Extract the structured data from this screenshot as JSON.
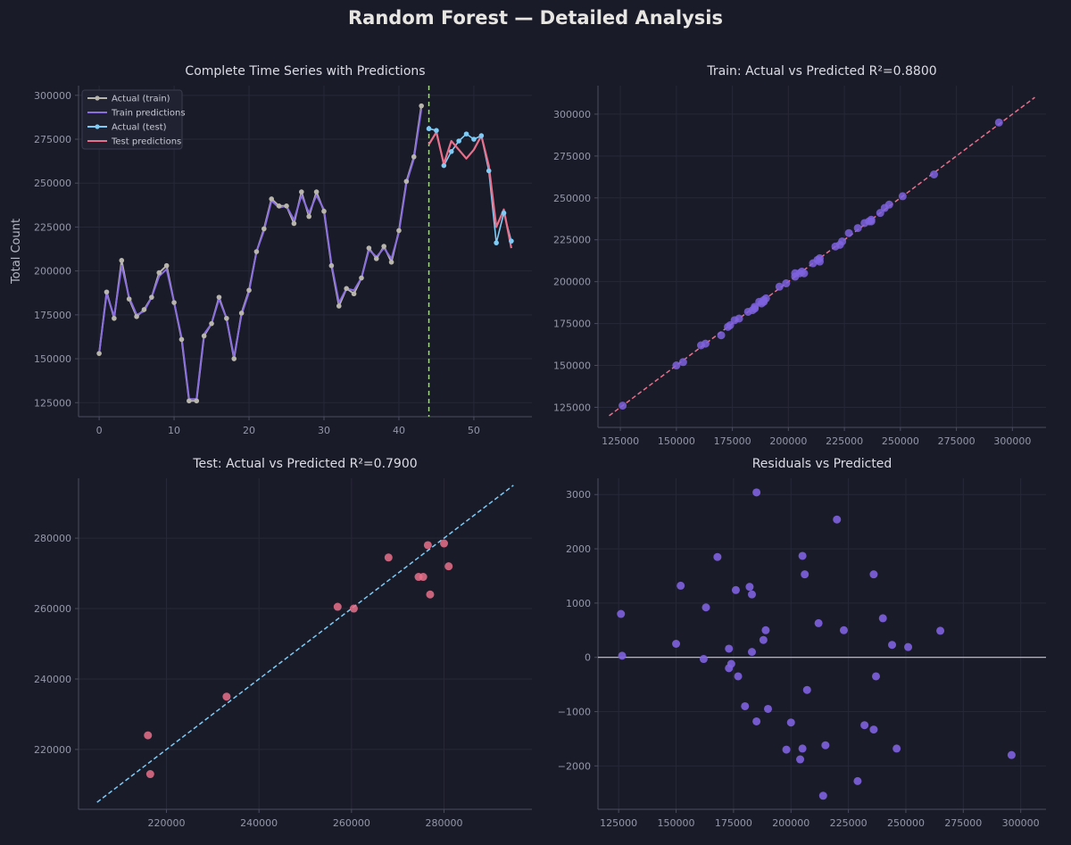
{
  "title": "Random Forest — Detailed Analysis",
  "colors": {
    "background": "#1a1b29",
    "grid": "#262838",
    "axis": "#4a4c5e",
    "train_actual": "#b8b6ac",
    "train_pred": "#8a6ee0",
    "test_actual": "#7ecbf5",
    "test_pred": "#e8708a",
    "split_line": "#a6d68a",
    "scatter_train": "#7e62de",
    "identity_train": "#e8708a",
    "scatter_test": "#e8708a",
    "identity_test": "#7ecbf5",
    "residual": "#7e62de",
    "zero_line": "#c8c9d4"
  },
  "chart_data": [
    {
      "type": "line",
      "title": "Complete Time Series with Predictions",
      "xlabel": "",
      "ylabel": "Total Count",
      "xlim": [
        -2.75,
        57.75
      ],
      "ylim": [
        117000,
        305500
      ],
      "xticks": [
        0,
        10,
        20,
        30,
        40,
        50
      ],
      "yticks": [
        125000,
        150000,
        175000,
        200000,
        225000,
        250000,
        275000,
        300000
      ],
      "grid": true,
      "legend": "top-left",
      "split_x": 44,
      "series": [
        {
          "name": "Actual (train)",
          "x": [
            0,
            1,
            2,
            3,
            4,
            5,
            6,
            7,
            8,
            9,
            10,
            11,
            12,
            13,
            14,
            15,
            16,
            17,
            18,
            19,
            20,
            21,
            22,
            23,
            24,
            25,
            26,
            27,
            28,
            29,
            30,
            31,
            32,
            33,
            34,
            35,
            36,
            37,
            38,
            39,
            40,
            41,
            42,
            43
          ],
          "values": [
            153000,
            188000,
            173000,
            206000,
            184000,
            174000,
            178000,
            185000,
            199000,
            203000,
            182000,
            161000,
            126000,
            126000,
            163000,
            170000,
            185000,
            173000,
            150000,
            176000,
            189000,
            211000,
            224000,
            241000,
            237000,
            237000,
            227000,
            245000,
            231000,
            245000,
            234000,
            203000,
            180000,
            190000,
            187000,
            196000,
            213000,
            207000,
            214000,
            205000,
            223000,
            251000,
            265000,
            294000
          ]
        },
        {
          "name": "Train predictions",
          "x": [
            0,
            1,
            2,
            3,
            4,
            5,
            6,
            7,
            8,
            9,
            10,
            11,
            12,
            13,
            14,
            15,
            16,
            17,
            18,
            19,
            20,
            21,
            22,
            23,
            24,
            25,
            26,
            27,
            28,
            29,
            30,
            31,
            32,
            33,
            34,
            35,
            36,
            37,
            38,
            39,
            40,
            41,
            42,
            43
          ],
          "values": [
            153000,
            187000,
            174000,
            203000,
            185000,
            175000,
            177000,
            185000,
            197000,
            201000,
            182000,
            162000,
            127000,
            127000,
            164000,
            170000,
            184000,
            173000,
            151000,
            175000,
            188000,
            211000,
            223000,
            240000,
            236000,
            237000,
            229000,
            243000,
            233000,
            243000,
            235000,
            204000,
            182000,
            190000,
            189000,
            196000,
            212000,
            208000,
            213000,
            207000,
            222000,
            250000,
            264000,
            292000
          ]
        },
        {
          "name": "Actual (test)",
          "x": [
            44,
            45,
            46,
            47,
            48,
            49,
            50,
            51,
            52,
            53,
            54,
            55
          ],
          "values": [
            281000,
            280000,
            260000,
            268000,
            274000,
            278000,
            275000,
            277000,
            257000,
            216000,
            233000,
            217000
          ]
        },
        {
          "name": "Test predictions",
          "x": [
            44,
            45,
            46,
            47,
            48,
            49,
            50,
            51,
            52,
            53,
            54,
            55
          ],
          "values": [
            272000,
            279000,
            261000,
            274000,
            269000,
            264000,
            269000,
            277000,
            260000,
            225000,
            235000,
            213000
          ]
        }
      ]
    },
    {
      "type": "scatter",
      "title": "Train: Actual vs Predicted  R²=0.8800",
      "xlim": [
        115000,
        315000
      ],
      "ylim": [
        113000,
        317000
      ],
      "xticks": [
        125000,
        150000,
        175000,
        200000,
        225000,
        250000,
        275000,
        300000
      ],
      "yticks": [
        125000,
        150000,
        175000,
        200000,
        225000,
        250000,
        275000,
        300000
      ],
      "grid": true,
      "identity_line": [
        120000,
        310000
      ],
      "points": [
        [
          126000,
          126000
        ],
        [
          150000,
          150000
        ],
        [
          153000,
          152000
        ],
        [
          161000,
          162000
        ],
        [
          163000,
          163000
        ],
        [
          170000,
          168000
        ],
        [
          173000,
          173000
        ],
        [
          174000,
          174000
        ],
        [
          176000,
          177000
        ],
        [
          178000,
          178000
        ],
        [
          182000,
          182000
        ],
        [
          184000,
          183000
        ],
        [
          185000,
          185000
        ],
        [
          185000,
          184000
        ],
        [
          187000,
          188000
        ],
        [
          188000,
          187000
        ],
        [
          189000,
          189000
        ],
        [
          189000,
          188000
        ],
        [
          190000,
          190000
        ],
        [
          196000,
          197000
        ],
        [
          199000,
          199000
        ],
        [
          203000,
          203000
        ],
        [
          203000,
          205000
        ],
        [
          205000,
          205000
        ],
        [
          206000,
          206000
        ],
        [
          207000,
          205000
        ],
        [
          211000,
          211000
        ],
        [
          213000,
          213000
        ],
        [
          214000,
          214000
        ],
        [
          214000,
          212000
        ],
        [
          221000,
          221000
        ],
        [
          223000,
          222000
        ],
        [
          224000,
          224000
        ],
        [
          227000,
          229000
        ],
        [
          231000,
          232000
        ],
        [
          234000,
          235000
        ],
        [
          236000,
          236000
        ],
        [
          237000,
          237000
        ],
        [
          237000,
          236000
        ],
        [
          241000,
          241000
        ],
        [
          243000,
          244000
        ],
        [
          245000,
          246000
        ],
        [
          251000,
          251000
        ],
        [
          265000,
          264000
        ],
        [
          294000,
          295000
        ]
      ]
    },
    {
      "type": "scatter",
      "title": "Test: Actual vs Predicted  R²=0.7900",
      "xlim": [
        201000,
        299000
      ],
      "ylim": [
        203000,
        297000
      ],
      "xticks": [
        220000,
        240000,
        260000,
        280000
      ],
      "yticks": [
        220000,
        240000,
        260000,
        280000
      ],
      "grid": true,
      "identity_line": [
        205000,
        295000
      ],
      "points": [
        [
          216000,
          224000
        ],
        [
          216500,
          213000
        ],
        [
          233000,
          235000
        ],
        [
          257000,
          260500
        ],
        [
          260500,
          260000
        ],
        [
          268000,
          274500
        ],
        [
          274500,
          269000
        ],
        [
          275500,
          269000
        ],
        [
          276500,
          278000
        ],
        [
          277000,
          264000
        ],
        [
          280000,
          278500
        ],
        [
          281000,
          272000
        ]
      ]
    },
    {
      "type": "scatter",
      "title": "Residuals vs Predicted",
      "xlim": [
        116000,
        311000
      ],
      "ylim": [
        -2800,
        3300
      ],
      "xticks": [
        125000,
        150000,
        175000,
        200000,
        225000,
        250000,
        275000,
        300000
      ],
      "yticks": [
        -2000,
        -1000,
        0,
        1000,
        2000,
        3000
      ],
      "grid": true,
      "zero_line": 0,
      "points": [
        [
          126000,
          800
        ],
        [
          126500,
          30
        ],
        [
          150000,
          250
        ],
        [
          152000,
          1320
        ],
        [
          162000,
          -30
        ],
        [
          163000,
          920
        ],
        [
          168000,
          1850
        ],
        [
          173000,
          -200
        ],
        [
          173000,
          160
        ],
        [
          174000,
          -120
        ],
        [
          176000,
          1240
        ],
        [
          177000,
          -350
        ],
        [
          180000,
          -900
        ],
        [
          182000,
          1300
        ],
        [
          183000,
          100
        ],
        [
          183000,
          1160
        ],
        [
          185000,
          -1180
        ],
        [
          185000,
          3040
        ],
        [
          188000,
          320
        ],
        [
          189000,
          500
        ],
        [
          190000,
          -950
        ],
        [
          198000,
          -1700
        ],
        [
          200000,
          -1200
        ],
        [
          204000,
          -1880
        ],
        [
          205000,
          1870
        ],
        [
          205000,
          -1680
        ],
        [
          206000,
          1530
        ],
        [
          207000,
          -600
        ],
        [
          212000,
          630
        ],
        [
          214000,
          -2550
        ],
        [
          215000,
          -1620
        ],
        [
          220000,
          2540
        ],
        [
          223000,
          500
        ],
        [
          229000,
          -2280
        ],
        [
          232000,
          -1250
        ],
        [
          236000,
          -1330
        ],
        [
          237000,
          -350
        ],
        [
          236000,
          1530
        ],
        [
          240000,
          720
        ],
        [
          244000,
          230
        ],
        [
          246000,
          -1680
        ],
        [
          251000,
          190
        ],
        [
          265000,
          490
        ],
        [
          296000,
          -1800
        ]
      ]
    }
  ]
}
